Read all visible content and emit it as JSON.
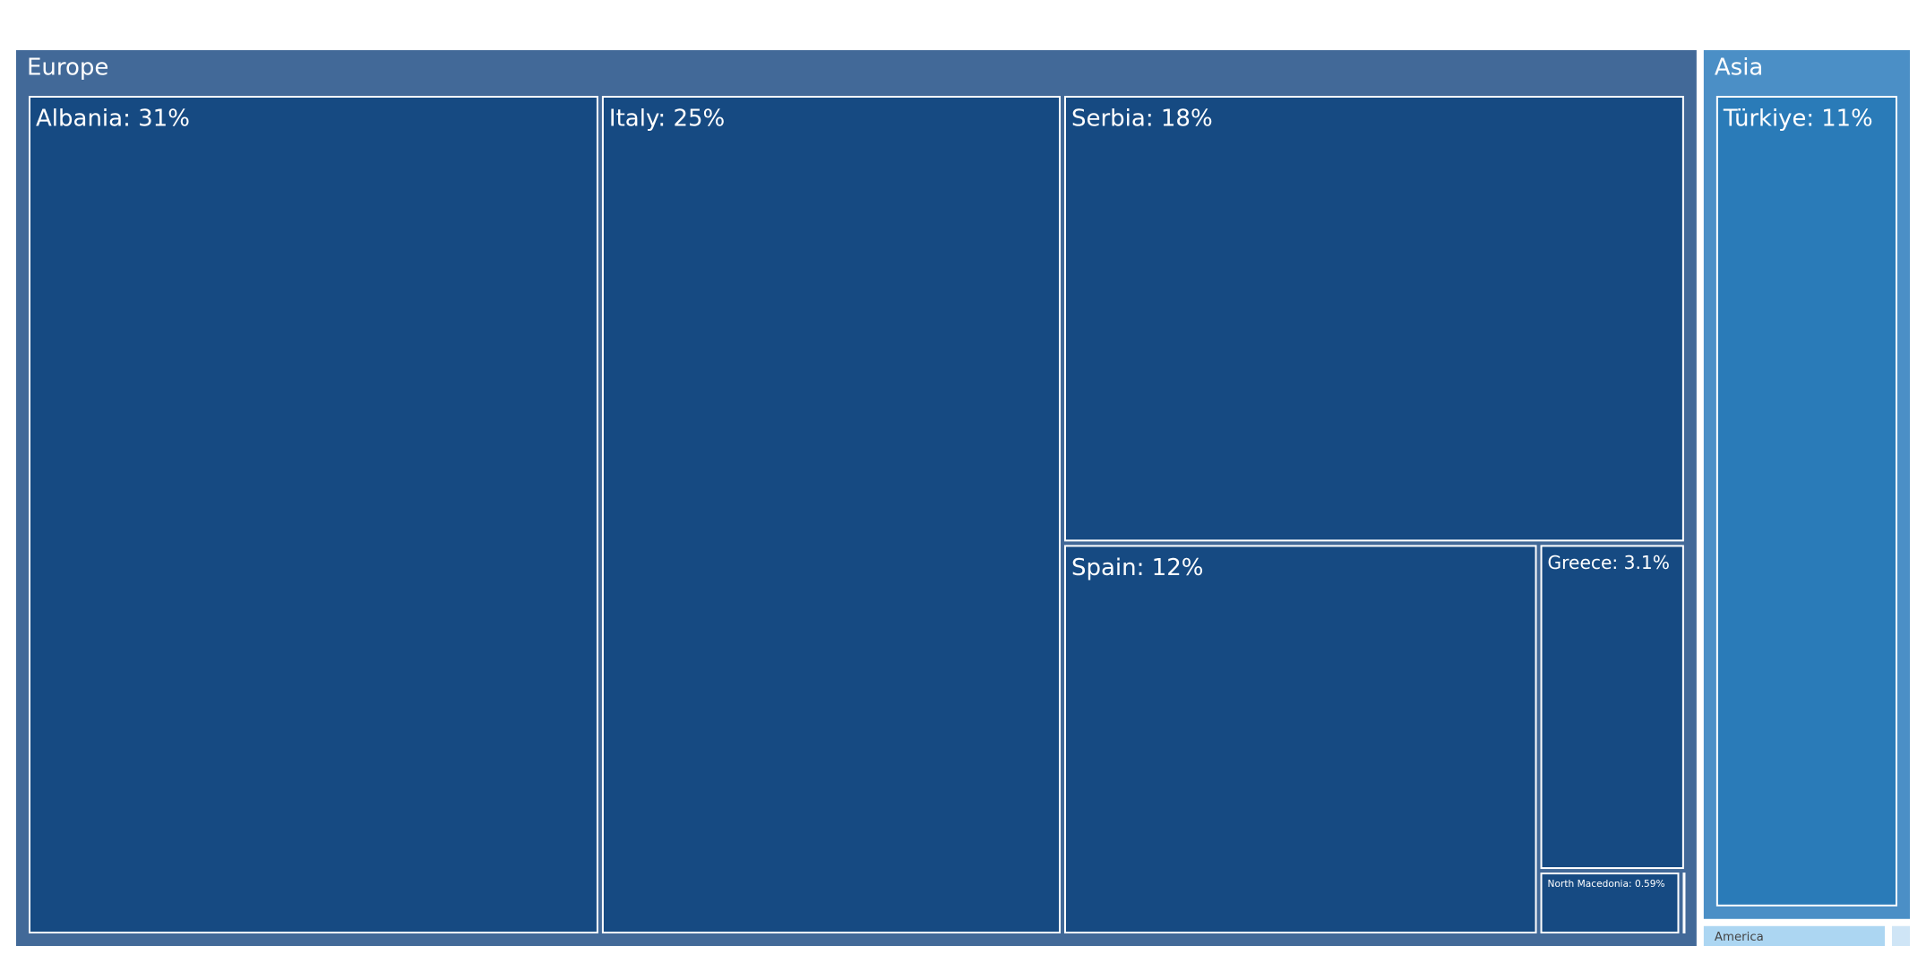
{
  "chart_data": {
    "type": "treemap",
    "groups": [
      {
        "name": "Europe",
        "color": "#426998",
        "text_color": "#ffffff",
        "children": [
          {
            "label": "Albania: 31%",
            "value": 31,
            "color": "#164a82"
          },
          {
            "label": "Italy: 25%",
            "value": 25,
            "color": "#164a82"
          },
          {
            "label": "Serbia: 18%",
            "value": 18,
            "color": "#164a82"
          },
          {
            "label": "Spain: 12%",
            "value": 12,
            "color": "#164a82"
          },
          {
            "label": "Greece: 3.1%",
            "value": 3.1,
            "color": "#164a82"
          },
          {
            "label": "North Macedonia: 0.59%",
            "value": 0.59,
            "color": "#164a82"
          },
          {
            "label": null,
            "value": 0.02,
            "color": "#164a82"
          }
        ]
      },
      {
        "name": "Asia",
        "color": "#4b8fc6",
        "text_color": "#ffffff",
        "children": [
          {
            "label": "Türkiye: 11%",
            "value": 11,
            "color": "#2a7bb8"
          }
        ]
      },
      {
        "name": "America",
        "color": "#acd6f2",
        "text_color": "#444444",
        "value": 0.3
      },
      {
        "name": null,
        "color": "#cfe5f6",
        "text_color": "#444444",
        "value": 0.04
      }
    ]
  }
}
